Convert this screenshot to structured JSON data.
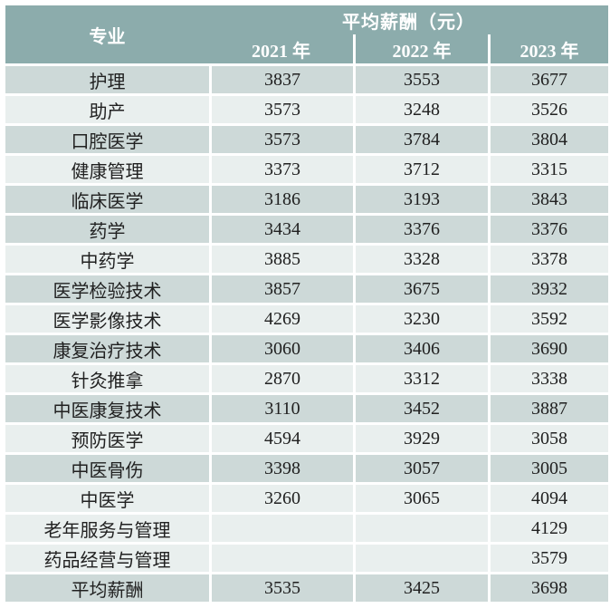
{
  "colors": {
    "header_bg": "#8CACAC",
    "header_text": "#FFFFFF",
    "row_dark": "#CDD9D8",
    "row_light": "#E9EFEE",
    "grid_lines": "#FFFFFF",
    "body_text": "#212121"
  },
  "chart_data": {
    "type": "table",
    "corner_header": "专业",
    "group_header": "平均薪酬（元）",
    "year_headers": [
      "2021 年",
      "2022 年",
      "2023 年"
    ],
    "columns": [
      "专业",
      "2021 年",
      "2022 年",
      "2023 年"
    ],
    "rows": [
      [
        "护理",
        3837,
        3553,
        3677
      ],
      [
        "助产",
        3573,
        3248,
        3526
      ],
      [
        "口腔医学",
        3573,
        3784,
        3804
      ],
      [
        "健康管理",
        3373,
        3712,
        3315
      ],
      [
        "临床医学",
        3186,
        3193,
        3843
      ],
      [
        "药学",
        3434,
        3376,
        3376
      ],
      [
        "中药学",
        3885,
        3328,
        3378
      ],
      [
        "医学检验技术",
        3857,
        3675,
        3932
      ],
      [
        "医学影像技术",
        4269,
        3230,
        3592
      ],
      [
        "康复治疗技术",
        3060,
        3406,
        3690
      ],
      [
        "针灸推拿",
        2870,
        3312,
        3338
      ],
      [
        "中医康复技术",
        3110,
        3452,
        3887
      ],
      [
        "预防医学",
        4594,
        3929,
        3058
      ],
      [
        "中医骨伤",
        3398,
        3057,
        3005
      ],
      [
        "中医学",
        3260,
        3065,
        4094
      ],
      [
        "老年服务与管理",
        null,
        null,
        4129
      ],
      [
        "药品经营与管理",
        null,
        null,
        3579
      ],
      [
        "平均薪酬",
        3535,
        3425,
        3698
      ]
    ],
    "layout": {
      "grid": "white 3px separators",
      "dark_row_indices": [
        0,
        2,
        4,
        5,
        7,
        9,
        11,
        13,
        17
      ],
      "empty_cells": "rows 老年服务与管理 and 药品经营与管理 have no 2021/2022 values"
    }
  }
}
